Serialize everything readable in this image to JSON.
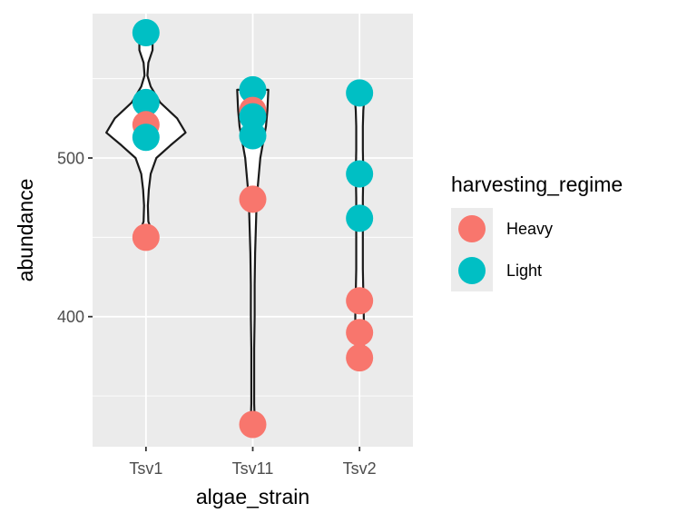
{
  "chart_data": {
    "type": "violin",
    "xlabel": "algae_strain",
    "ylabel": "abundance",
    "categories": [
      "Tsv1",
      "Tsv11",
      "Tsv2"
    ],
    "y_ticks": [
      400,
      500
    ],
    "y_tick_labels": [
      "400",
      "500"
    ],
    "ylim": [
      318,
      591
    ],
    "grid": true,
    "legend": {
      "title": "harvesting_regime",
      "placement": "right",
      "entries": [
        {
          "label": "Heavy",
          "color": "#F8766D"
        },
        {
          "label": "Light",
          "color": "#00BFC4"
        }
      ]
    },
    "points": [
      {
        "category": "Tsv1",
        "group": "Light",
        "value": 579
      },
      {
        "category": "Tsv1",
        "group": "Light",
        "value": 535
      },
      {
        "category": "Tsv1",
        "group": "Heavy",
        "value": 521
      },
      {
        "category": "Tsv1",
        "group": "Light",
        "value": 513
      },
      {
        "category": "Tsv1",
        "group": "Heavy",
        "value": 450
      },
      {
        "category": "Tsv11",
        "group": "Light",
        "value": 543
      },
      {
        "category": "Tsv11",
        "group": "Heavy",
        "value": 530
      },
      {
        "category": "Tsv11",
        "group": "Light",
        "value": 526
      },
      {
        "category": "Tsv11",
        "group": "Light",
        "value": 514
      },
      {
        "category": "Tsv11",
        "group": "Heavy",
        "value": 474
      },
      {
        "category": "Tsv11",
        "group": "Heavy",
        "value": 332
      },
      {
        "category": "Tsv2",
        "group": "Light",
        "value": 541
      },
      {
        "category": "Tsv2",
        "group": "Light",
        "value": 490
      },
      {
        "category": "Tsv2",
        "group": "Light",
        "value": 462
      },
      {
        "category": "Tsv2",
        "group": "Heavy",
        "value": 410
      },
      {
        "category": "Tsv2",
        "group": "Heavy",
        "value": 390
      },
      {
        "category": "Tsv2",
        "group": "Heavy",
        "value": 374
      }
    ],
    "violins": [
      {
        "category": "Tsv1",
        "profile": [
          [
            579,
            0.07
          ],
          [
            575,
            0.14
          ],
          [
            568,
            0.14
          ],
          [
            560,
            0.05
          ],
          [
            552,
            0.03
          ],
          [
            545,
            0.1
          ],
          [
            535,
            0.3
          ],
          [
            525,
            0.66
          ],
          [
            516,
            0.84
          ],
          [
            508,
            0.52
          ],
          [
            500,
            0.22
          ],
          [
            490,
            0.1
          ],
          [
            480,
            0.06
          ],
          [
            470,
            0.04
          ],
          [
            460,
            0.05
          ],
          [
            454,
            0.12
          ],
          [
            450,
            0.1
          ]
        ]
      },
      {
        "category": "Tsv11",
        "profile": [
          [
            543,
            0.33
          ],
          [
            530,
            0.31
          ],
          [
            520,
            0.28
          ],
          [
            510,
            0.22
          ],
          [
            500,
            0.16
          ],
          [
            490,
            0.13
          ],
          [
            480,
            0.1
          ],
          [
            470,
            0.08
          ],
          [
            460,
            0.07
          ],
          [
            450,
            0.06
          ],
          [
            440,
            0.05
          ],
          [
            420,
            0.04
          ],
          [
            400,
            0.04
          ],
          [
            380,
            0.03
          ],
          [
            360,
            0.03
          ],
          [
            345,
            0.03
          ],
          [
            336,
            0.04
          ],
          [
            332,
            0.03
          ]
        ]
      },
      {
        "category": "Tsv2",
        "profile": [
          [
            541,
            0.11
          ],
          [
            530,
            0.08
          ],
          [
            520,
            0.07
          ],
          [
            505,
            0.07
          ],
          [
            490,
            0.08
          ],
          [
            475,
            0.07
          ],
          [
            460,
            0.07
          ],
          [
            445,
            0.07
          ],
          [
            430,
            0.07
          ],
          [
            415,
            0.08
          ],
          [
            400,
            0.09
          ],
          [
            385,
            0.09
          ],
          [
            374,
            0.08
          ]
        ]
      }
    ]
  }
}
